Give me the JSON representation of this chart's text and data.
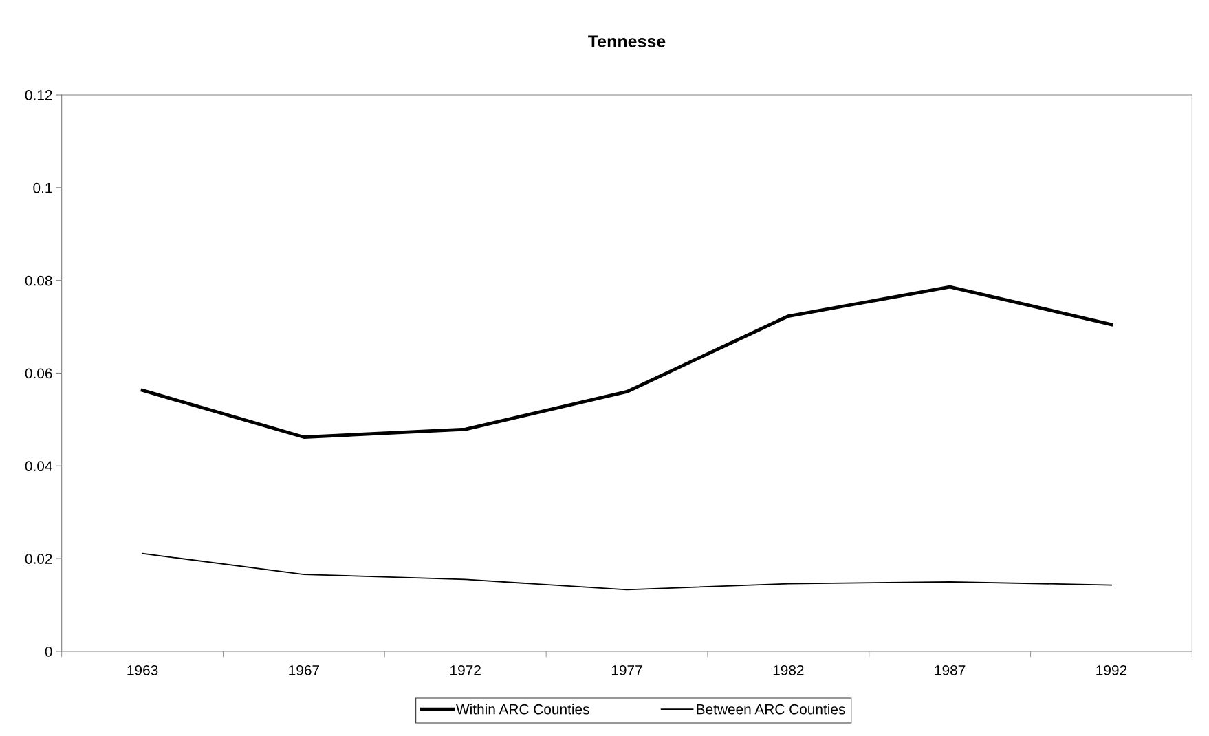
{
  "chart_data": {
    "type": "line",
    "title": "Tennesse",
    "categories": [
      "1963",
      "1967",
      "1972",
      "1977",
      "1982",
      "1987",
      "1992"
    ],
    "series": [
      {
        "name": "Within ARC Counties",
        "color": "#000000",
        "values": [
          0.0563,
          0.0462,
          0.0479,
          0.056,
          0.0723,
          0.0786,
          0.0705
        ]
      },
      {
        "name": "Between ARC Counties",
        "color": "#000000",
        "values": [
          0.0211,
          0.0166,
          0.0155,
          0.0133,
          0.0146,
          0.015,
          0.0143
        ]
      }
    ],
    "ylim": [
      0,
      0.12
    ],
    "yticks": [
      0,
      0.02,
      0.04,
      0.06,
      0.08,
      0.1,
      0.12
    ],
    "grid": false,
    "legend": "bottom",
    "marker": "none",
    "line_style": "solid"
  }
}
